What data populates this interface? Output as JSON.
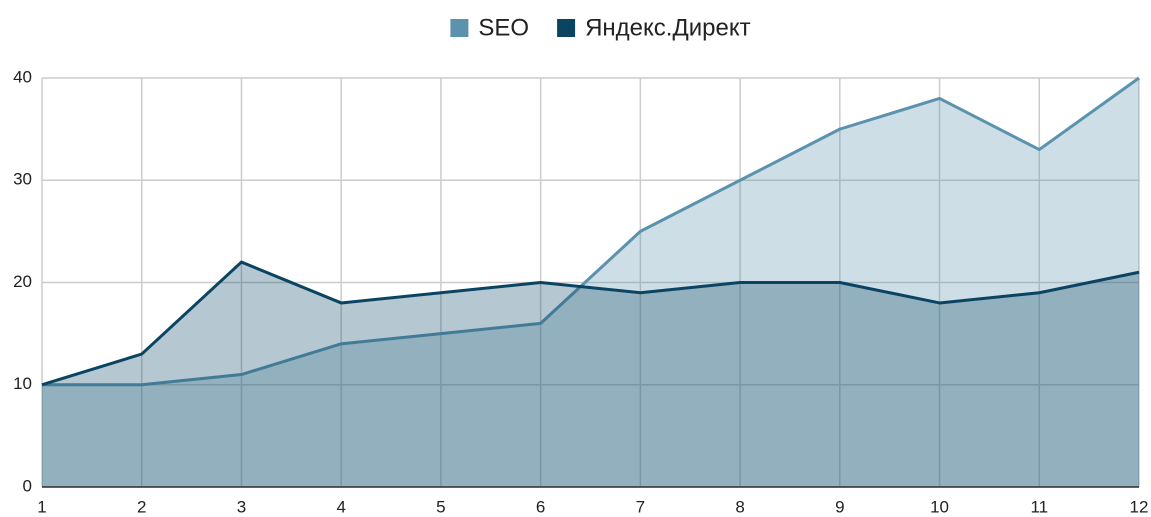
{
  "chart_data": {
    "type": "area",
    "x": [
      1,
      2,
      3,
      4,
      5,
      6,
      7,
      8,
      9,
      10,
      11,
      12
    ],
    "series": [
      {
        "name": "SEO",
        "color": "#5b92ad",
        "values": [
          10,
          10,
          11,
          14,
          15,
          16,
          25,
          30,
          35,
          38,
          33,
          40
        ]
      },
      {
        "name": "Яндекс.Директ",
        "color": "#0b4463",
        "values": [
          10,
          13,
          22,
          18,
          19,
          20,
          19,
          20,
          20,
          18,
          19,
          21
        ]
      }
    ],
    "xlim": [
      1,
      12
    ],
    "xticks": [
      1,
      2,
      3,
      4,
      5,
      6,
      7,
      8,
      9,
      10,
      11,
      12
    ],
    "ylim": [
      0,
      40
    ],
    "yticks": [
      0,
      10,
      20,
      30,
      40
    ],
    "grid": true,
    "legend": "top"
  }
}
